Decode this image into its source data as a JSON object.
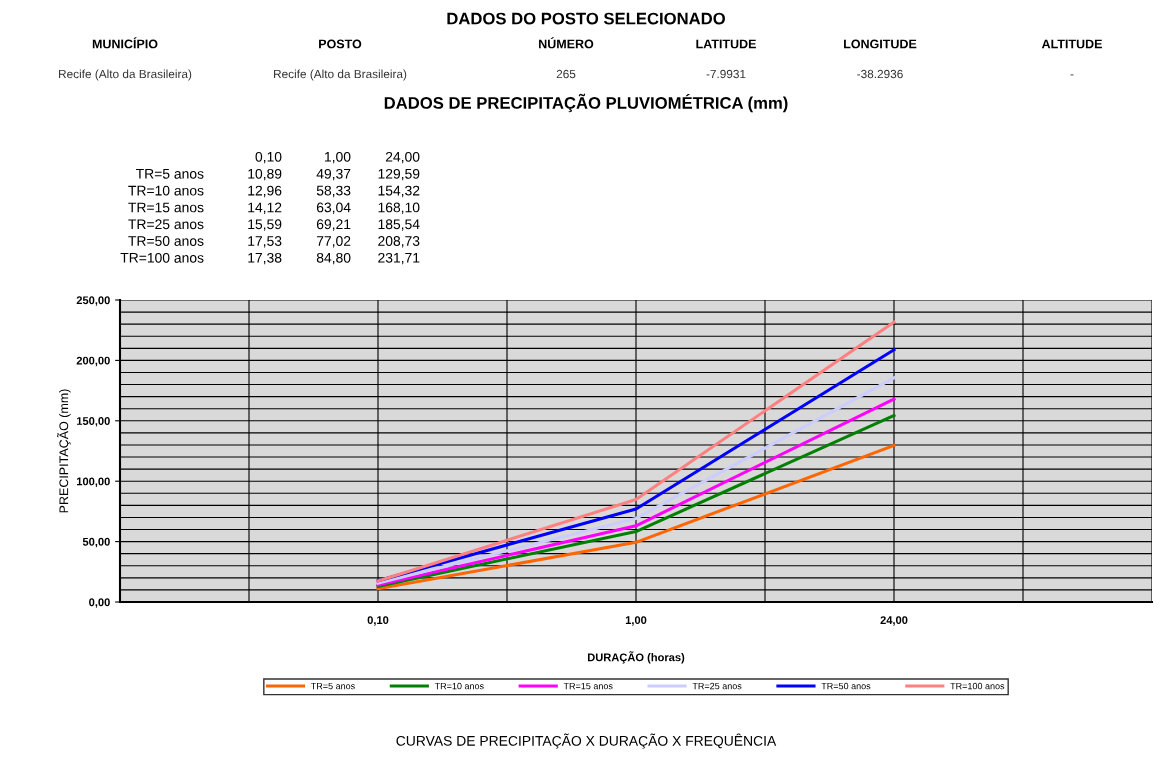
{
  "chart_data": {
    "type": "line",
    "title": "DADOS DO POSTO SELECIONADO",
    "annotations": [
      "MUNICÍPIO",
      "POSTO",
      "NÚMERO",
      "LATITUDE",
      "LONGITUDE",
      "ALTITUDE",
      "Recife (Alto da Brasileira)",
      "Recife (Alto da Brasileira)",
      "265",
      "-7.9931",
      "-38.2936",
      "-",
      "DADOS DE PRECIPITAÇÃO PLUVIOMÉTRICA (mm)",
      "CURVAS DE PRECIPITAÇÃO X DURAÇÃO X FREQUÊNCIA",
      "10,89",
      "49,37",
      "129,59",
      "12,96",
      "58,33",
      "154,32",
      "14,12",
      "63,04",
      "168,10",
      "15,59",
      "69,21",
      "185,54",
      "17,53",
      "77,02",
      "208,73",
      "17,38",
      "84,80",
      "231,71"
    ],
    "xlabel": "DURAÇÃO (horas)",
    "ylabel": "PRECIPITAÇÃO (mm)",
    "categories": [
      "0,10",
      "1,00",
      "24,00"
    ],
    "series": [
      {
        "name": "TR=5 anos",
        "color": "#ff6600",
        "values": [
          10.89,
          49.37,
          129.59
        ]
      },
      {
        "name": "TR=10 anos",
        "color": "#008000",
        "values": [
          12.96,
          58.33,
          154.32
        ]
      },
      {
        "name": "TR=15 anos",
        "color": "#ff00ff",
        "values": [
          14.12,
          63.04,
          168.1
        ]
      },
      {
        "name": "TR=25 anos",
        "color": "#ccccff",
        "values": [
          15.59,
          69.21,
          185.54
        ]
      },
      {
        "name": "TR=50 anos",
        "color": "#0000ff",
        "values": [
          17.53,
          77.02,
          208.73
        ]
      },
      {
        "name": "TR=100 anos",
        "color": "#ff8080",
        "values": [
          17.38,
          84.8,
          231.71
        ]
      }
    ],
    "ylim": [
      0,
      250
    ],
    "yticks": [
      {
        "value": 0,
        "label": "0,00"
      },
      {
        "value": 50,
        "label": "50,00"
      },
      {
        "value": 100,
        "label": "100,00"
      },
      {
        "value": 150,
        "label": "150,00"
      },
      {
        "value": 200,
        "label": "200,00"
      },
      {
        "value": 250,
        "label": "250,00"
      }
    ],
    "grid": true,
    "legend": "bottom",
    "marker": "none",
    "line_style": "solid"
  }
}
